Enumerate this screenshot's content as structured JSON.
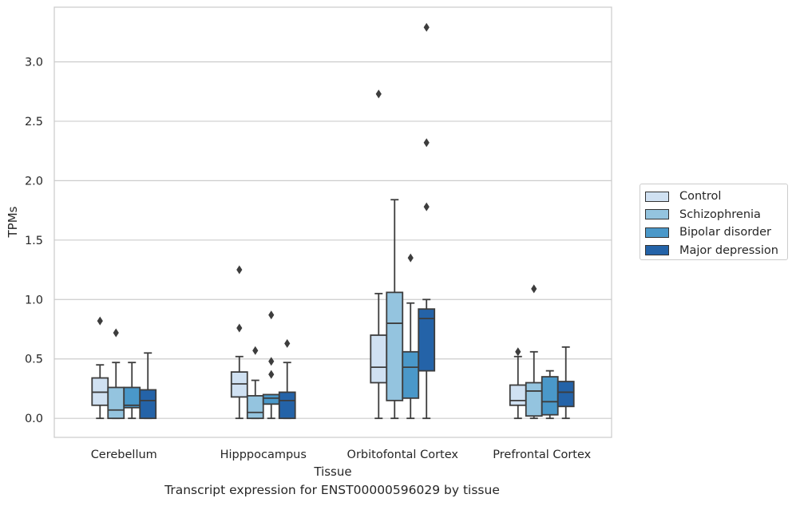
{
  "caption": "Transcript expression for ENST00000596029 by tissue",
  "chart_data": {
    "type": "box",
    "xlabel": "Tissue",
    "ylabel": "TPMs",
    "ylim": [
      -0.16,
      3.46
    ],
    "yticks": [
      "0.0",
      "0.5",
      "1.0",
      "1.5",
      "2.0",
      "2.5",
      "3.0"
    ],
    "ytick_values": [
      0,
      0.5,
      1.0,
      1.5,
      2.0,
      2.5,
      3.0
    ],
    "grid": "horizontal",
    "legend_position": "right",
    "categories": [
      "Cerebellum",
      "Hipppocampus",
      "Orbitofontal Cortex",
      "Prefrontal Cortex"
    ],
    "colors": [
      "#d0e1f2",
      "#94c4df",
      "#4a98c9",
      "#2463a8"
    ],
    "series": [
      {
        "name": "Control",
        "boxes": [
          {
            "whislo": 0.0,
            "q1": 0.11,
            "med": 0.22,
            "q3": 0.34,
            "whishi": 0.45,
            "fliers": [
              0.82
            ]
          },
          {
            "whislo": 0.0,
            "q1": 0.18,
            "med": 0.29,
            "q3": 0.39,
            "whishi": 0.52,
            "fliers": [
              0.76,
              1.25
            ]
          },
          {
            "whislo": 0.0,
            "q1": 0.3,
            "med": 0.43,
            "q3": 0.7,
            "whishi": 1.05,
            "fliers": [
              2.73
            ]
          },
          {
            "whislo": 0.0,
            "q1": 0.11,
            "med": 0.15,
            "q3": 0.28,
            "whishi": 0.52,
            "fliers": [
              0.56
            ]
          }
        ]
      },
      {
        "name": "Schizophrenia",
        "boxes": [
          {
            "whislo": 0.0,
            "q1": 0.0,
            "med": 0.07,
            "q3": 0.26,
            "whishi": 0.47,
            "fliers": [
              0.72
            ]
          },
          {
            "whislo": 0.0,
            "q1": 0.0,
            "med": 0.05,
            "q3": 0.19,
            "whishi": 0.32,
            "fliers": [
              0.57
            ]
          },
          {
            "whislo": 0.0,
            "q1": 0.15,
            "med": 0.8,
            "q3": 1.06,
            "whishi": 1.84,
            "fliers": []
          },
          {
            "whislo": 0.0,
            "q1": 0.02,
            "med": 0.23,
            "q3": 0.3,
            "whishi": 0.56,
            "fliers": [
              1.09
            ]
          }
        ]
      },
      {
        "name": "Bipolar disorder",
        "boxes": [
          {
            "whislo": 0.0,
            "q1": 0.09,
            "med": 0.11,
            "q3": 0.26,
            "whishi": 0.47,
            "fliers": []
          },
          {
            "whislo": 0.0,
            "q1": 0.12,
            "med": 0.17,
            "q3": 0.2,
            "whishi": 0.2,
            "fliers": [
              0.37,
              0.48,
              0.87
            ]
          },
          {
            "whislo": 0.0,
            "q1": 0.17,
            "med": 0.43,
            "q3": 0.56,
            "whishi": 0.97,
            "fliers": [
              1.35
            ]
          },
          {
            "whislo": 0.0,
            "q1": 0.03,
            "med": 0.14,
            "q3": 0.35,
            "whishi": 0.4,
            "fliers": []
          }
        ]
      },
      {
        "name": "Major depression",
        "boxes": [
          {
            "whislo": 0.0,
            "q1": 0.0,
            "med": 0.15,
            "q3": 0.24,
            "whishi": 0.55,
            "fliers": []
          },
          {
            "whislo": 0.0,
            "q1": 0.0,
            "med": 0.15,
            "q3": 0.22,
            "whishi": 0.47,
            "fliers": [
              0.63
            ]
          },
          {
            "whislo": 0.0,
            "q1": 0.4,
            "med": 0.84,
            "q3": 0.92,
            "whishi": 1.0,
            "fliers": [
              1.78,
              2.32,
              3.29
            ]
          },
          {
            "whislo": 0.0,
            "q1": 0.1,
            "med": 0.22,
            "q3": 0.31,
            "whishi": 0.6,
            "fliers": []
          }
        ]
      }
    ]
  }
}
